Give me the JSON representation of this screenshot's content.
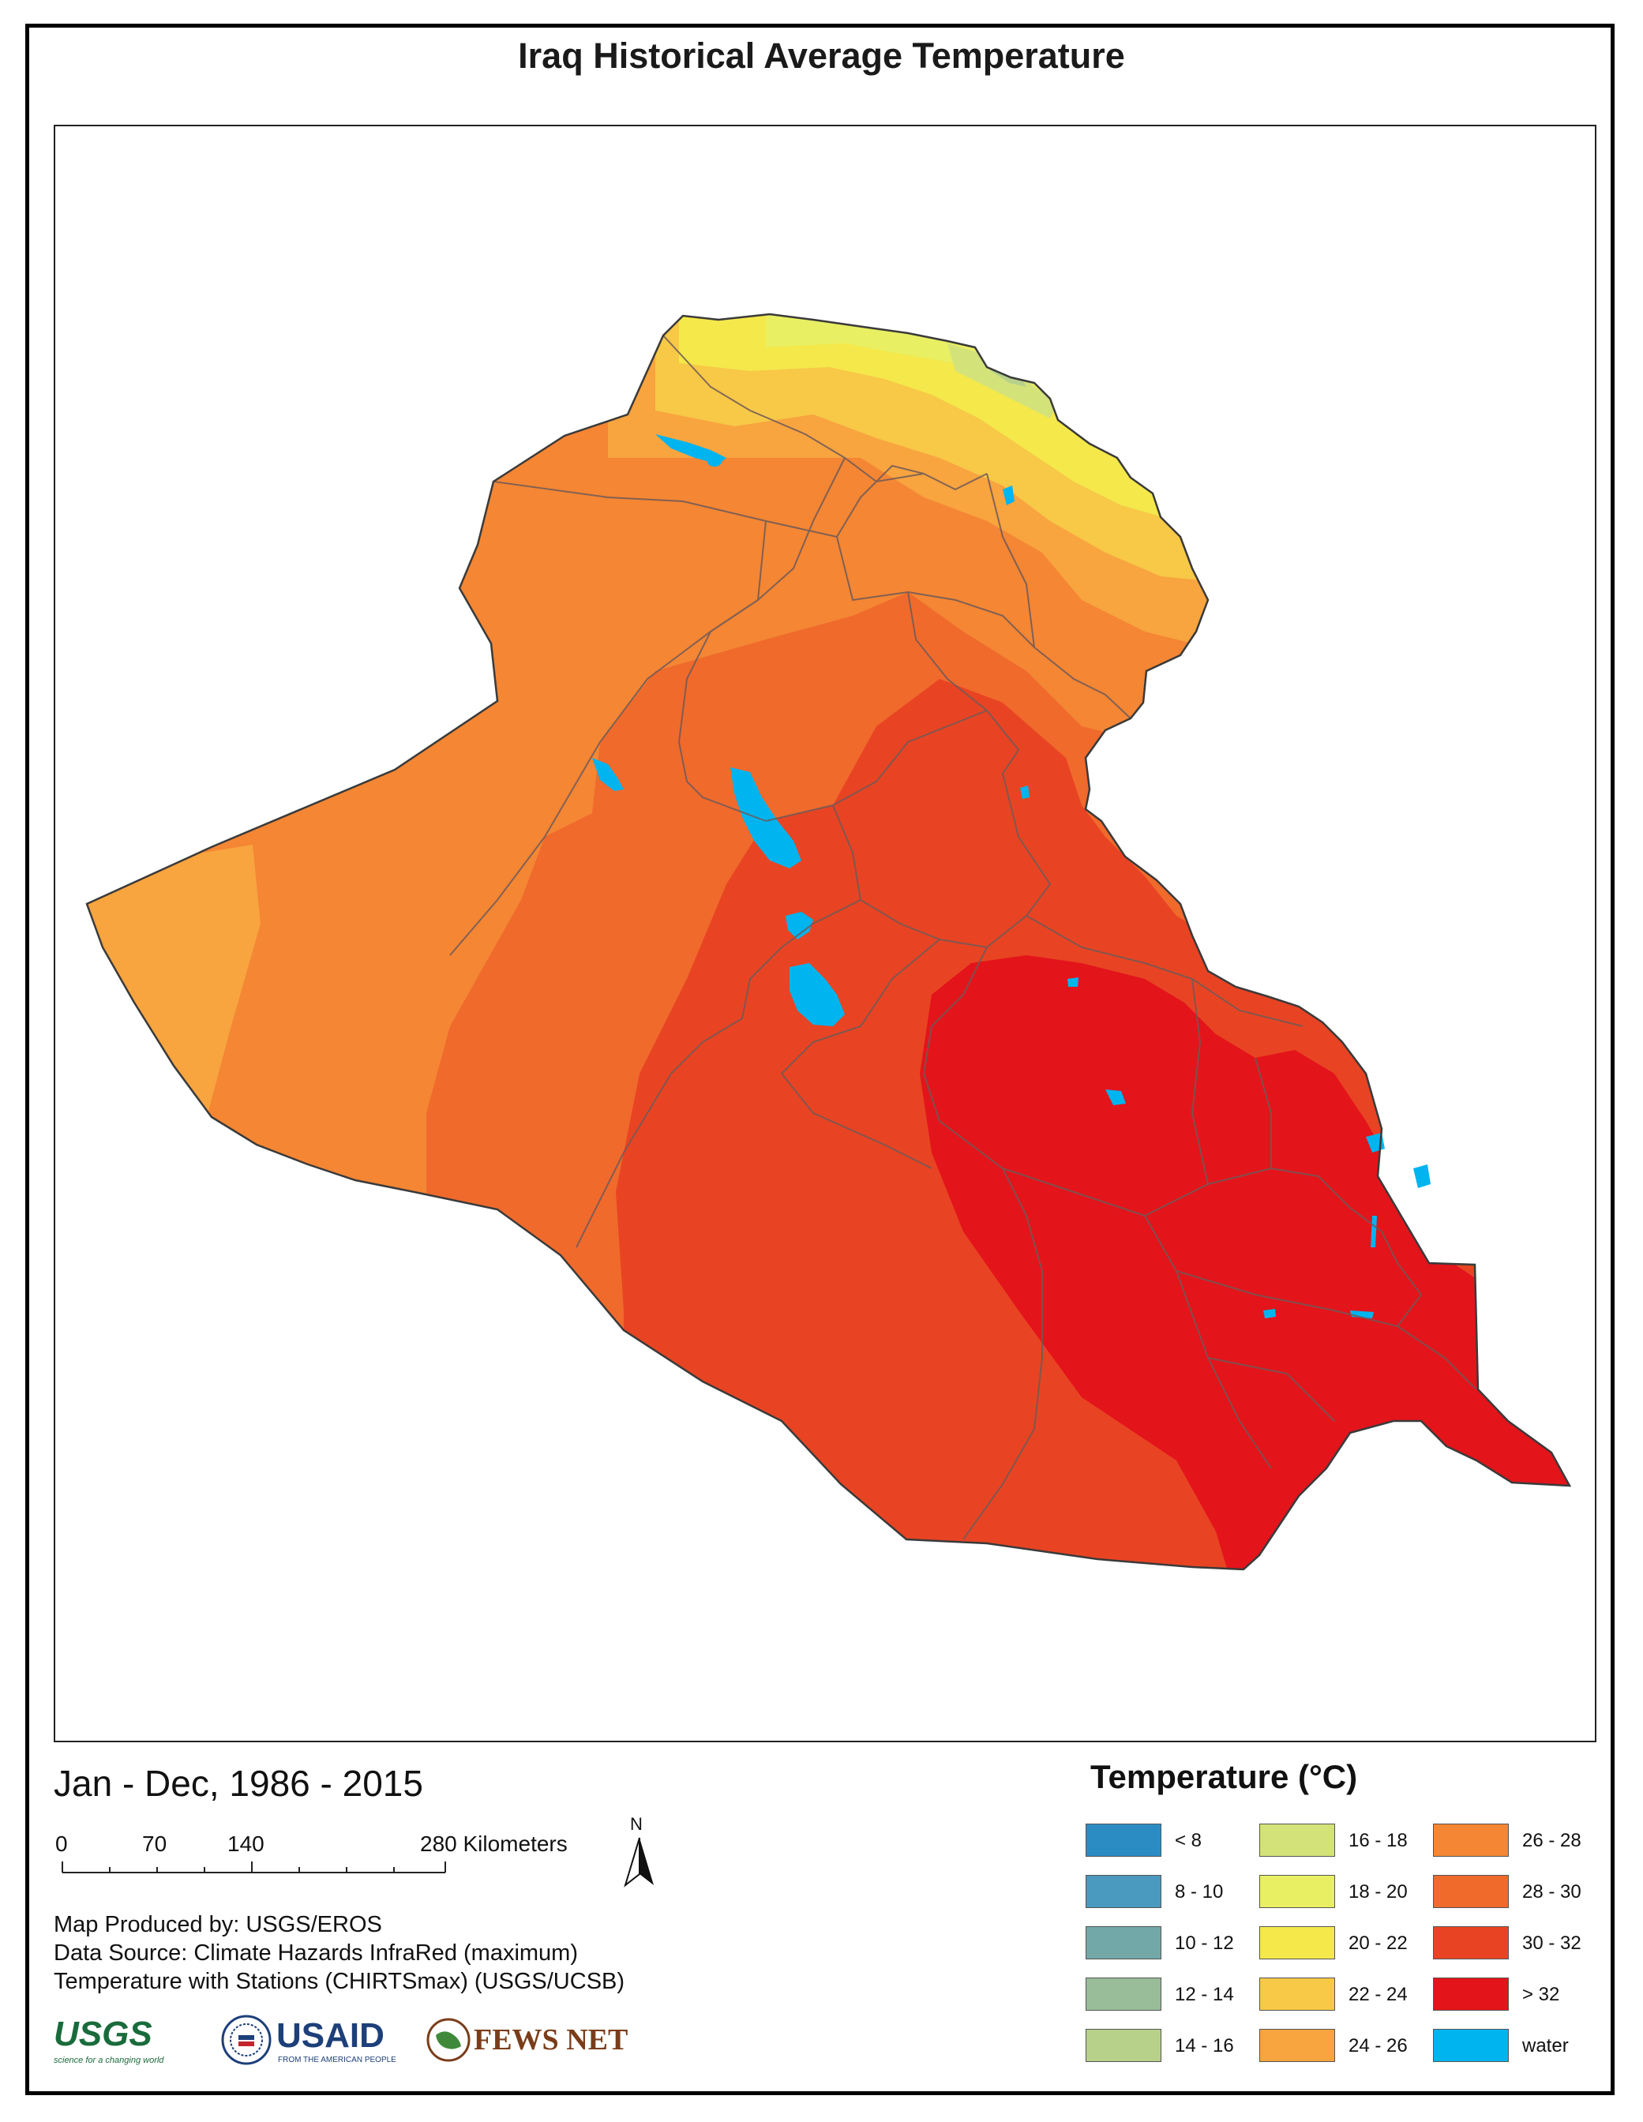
{
  "title": "Iraq Historical Average Temperature",
  "period": "Jan - Dec, 1986 - 2015",
  "scale_bar": {
    "labels": [
      "0",
      "70",
      "140",
      "280 Kilometers"
    ]
  },
  "north_label": "N",
  "credits": [
    "Map Produced by: USGS/EROS",
    "Data Source: Climate Hazards InfraRed (maximum)",
    "Temperature with Stations (CHIRTSmax) (USGS/UCSB)"
  ],
  "logos": {
    "usgs": "USGS",
    "usgs_tagline": "science for a changing world",
    "usaid": "USAID",
    "usaid_tagline": "FROM THE AMERICAN PEOPLE",
    "fewsnet": "FEWS NET"
  },
  "legend": {
    "title": "Temperature (°C)",
    "items": [
      {
        "label": "< 8",
        "color": "#2b8cc4"
      },
      {
        "label": "8 - 10",
        "color": "#4a9ac0"
      },
      {
        "label": "10 - 12",
        "color": "#73a8a8"
      },
      {
        "label": "12 - 14",
        "color": "#98bd98"
      },
      {
        "label": "14 - 16",
        "color": "#b7d18a"
      },
      {
        "label": "16 - 18",
        "color": "#d4e27a"
      },
      {
        "label": "18 - 20",
        "color": "#e9ef62"
      },
      {
        "label": "20 - 22",
        "color": "#f4e84a"
      },
      {
        "label": "22 - 24",
        "color": "#f8c847"
      },
      {
        "label": "24 - 26",
        "color": "#f8a43f"
      },
      {
        "label": "26 - 28",
        "color": "#f48634"
      },
      {
        "label": "28 - 30",
        "color": "#f06a2c"
      },
      {
        "label": "30 - 32",
        "color": "#e84423"
      },
      {
        "label": "> 32",
        "color": "#e4141b"
      },
      {
        "label": "water",
        "color": "#00b4f0"
      }
    ]
  }
}
